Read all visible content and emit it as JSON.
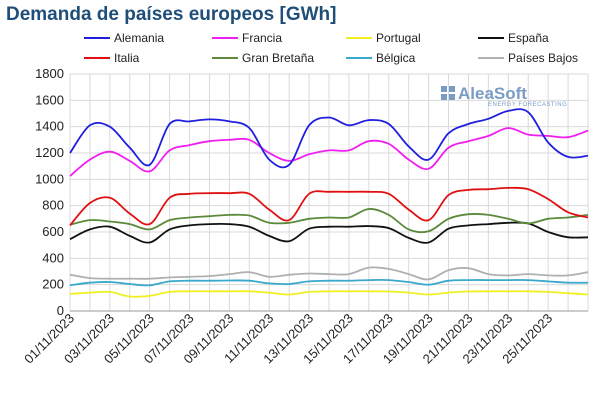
{
  "chart_data": {
    "type": "line",
    "title": "Demanda de países europeos [GWh]",
    "xlabel": "",
    "ylabel": "",
    "ylim": [
      0,
      1800
    ],
    "yticks": [
      0,
      200,
      400,
      600,
      800,
      1000,
      1200,
      1400,
      1600,
      1800
    ],
    "grid": true,
    "legend_position": "top",
    "x": [
      "01/11/2023",
      "02/11/2023",
      "03/11/2023",
      "04/11/2023",
      "05/11/2023",
      "06/11/2023",
      "07/11/2023",
      "08/11/2023",
      "09/11/2023",
      "10/11/2023",
      "11/11/2023",
      "12/11/2023",
      "13/11/2023",
      "14/11/2023",
      "15/11/2023",
      "16/11/2023",
      "17/11/2023",
      "18/11/2023",
      "19/11/2023",
      "20/11/2023",
      "21/11/2023",
      "22/11/2023",
      "23/11/2023",
      "24/11/2023",
      "25/11/2023",
      "26/11/2023",
      "27/11/2023"
    ],
    "xtick_labels": [
      "01/11/2023",
      "03/11/2023",
      "05/11/2023",
      "07/11/2023",
      "09/11/2023",
      "11/11/2023",
      "13/11/2023",
      "15/11/2023",
      "17/11/2023",
      "19/11/2023",
      "21/11/2023",
      "23/11/2023",
      "25/11/2023"
    ],
    "series": [
      {
        "name": "Alemania",
        "color": "#1f1fe0",
        "values": [
          1200,
          1410,
          1400,
          1240,
          1110,
          1420,
          1440,
          1455,
          1440,
          1390,
          1150,
          1110,
          1410,
          1470,
          1410,
          1450,
          1420,
          1250,
          1150,
          1350,
          1420,
          1460,
          1520,
          1510,
          1280,
          1170,
          1180
        ]
      },
      {
        "name": "Francia",
        "color": "#f01ef0",
        "values": [
          1025,
          1150,
          1210,
          1140,
          1060,
          1220,
          1260,
          1290,
          1300,
          1300,
          1200,
          1140,
          1190,
          1220,
          1220,
          1290,
          1270,
          1150,
          1080,
          1240,
          1290,
          1330,
          1390,
          1340,
          1330,
          1320,
          1370
        ]
      },
      {
        "name": "Portugal",
        "color": "#f0f020",
        "values": [
          130,
          140,
          145,
          110,
          115,
          145,
          150,
          150,
          150,
          150,
          140,
          125,
          145,
          150,
          150,
          150,
          148,
          140,
          125,
          140,
          148,
          150,
          150,
          150,
          145,
          135,
          125
        ]
      },
      {
        "name": "España",
        "color": "#111111",
        "values": [
          545,
          620,
          640,
          570,
          520,
          620,
          650,
          660,
          660,
          640,
          570,
          530,
          625,
          640,
          640,
          645,
          630,
          555,
          520,
          625,
          650,
          660,
          670,
          665,
          600,
          560,
          560
        ]
      },
      {
        "name": "Italia",
        "color": "#e01010",
        "values": [
          650,
          820,
          860,
          740,
          660,
          860,
          890,
          895,
          895,
          890,
          770,
          690,
          890,
          905,
          905,
          905,
          890,
          770,
          690,
          880,
          920,
          925,
          935,
          925,
          850,
          750,
          710
        ]
      },
      {
        "name": "Gran Bretaña",
        "color": "#5a8a3a",
        "values": [
          655,
          690,
          680,
          660,
          620,
          690,
          710,
          720,
          730,
          725,
          670,
          670,
          700,
          710,
          710,
          775,
          730,
          620,
          605,
          700,
          735,
          730,
          700,
          665,
          700,
          710,
          730
        ]
      },
      {
        "name": "Bélgica",
        "color": "#38a8cc",
        "values": [
          195,
          215,
          220,
          205,
          195,
          225,
          230,
          230,
          232,
          230,
          210,
          205,
          225,
          230,
          230,
          235,
          235,
          220,
          200,
          230,
          235,
          235,
          235,
          235,
          225,
          215,
          215
        ]
      },
      {
        "name": "Países Bajos",
        "color": "#b0b0b0",
        "values": [
          275,
          250,
          245,
          245,
          245,
          255,
          260,
          265,
          280,
          295,
          260,
          275,
          285,
          280,
          280,
          330,
          320,
          280,
          240,
          310,
          325,
          280,
          270,
          280,
          270,
          270,
          295
        ]
      }
    ]
  },
  "logo": {
    "name": "AleaSoft",
    "tagline": "ENERGY FORECASTING"
  }
}
